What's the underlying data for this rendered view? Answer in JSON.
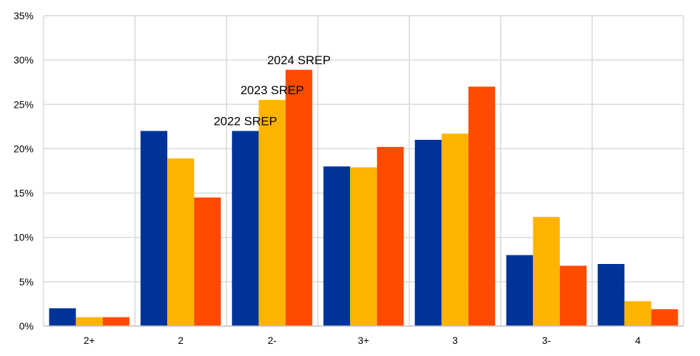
{
  "chart_data": {
    "type": "bar",
    "categories": [
      "2+",
      "2",
      "2-",
      "3+",
      "3",
      "3-",
      "4"
    ],
    "series": [
      {
        "name": "2022 SREP",
        "color": "#003399",
        "values": [
          2.0,
          22.0,
          22.0,
          18.0,
          21.0,
          8.0,
          7.0
        ]
      },
      {
        "name": "2023 SREP",
        "color": "#FFB400",
        "values": [
          1.0,
          18.9,
          25.5,
          17.9,
          21.7,
          12.3,
          2.8
        ]
      },
      {
        "name": "2024 SREP",
        "color": "#FF4B00",
        "values": [
          1.0,
          14.5,
          28.9,
          20.2,
          27.0,
          6.8,
          1.9
        ]
      }
    ],
    "yticks": [
      "0%",
      "5%",
      "10%",
      "15%",
      "20%",
      "25%",
      "30%",
      "35%"
    ],
    "ylim": [
      0,
      35
    ],
    "grid": true,
    "annotations": [
      {
        "text": "2022 SREP",
        "category": "2-",
        "series": 0
      },
      {
        "text": "2023 SREP",
        "category": "2-",
        "series": 1
      },
      {
        "text": "2024 SREP",
        "category": "2-",
        "series": 2
      }
    ]
  }
}
